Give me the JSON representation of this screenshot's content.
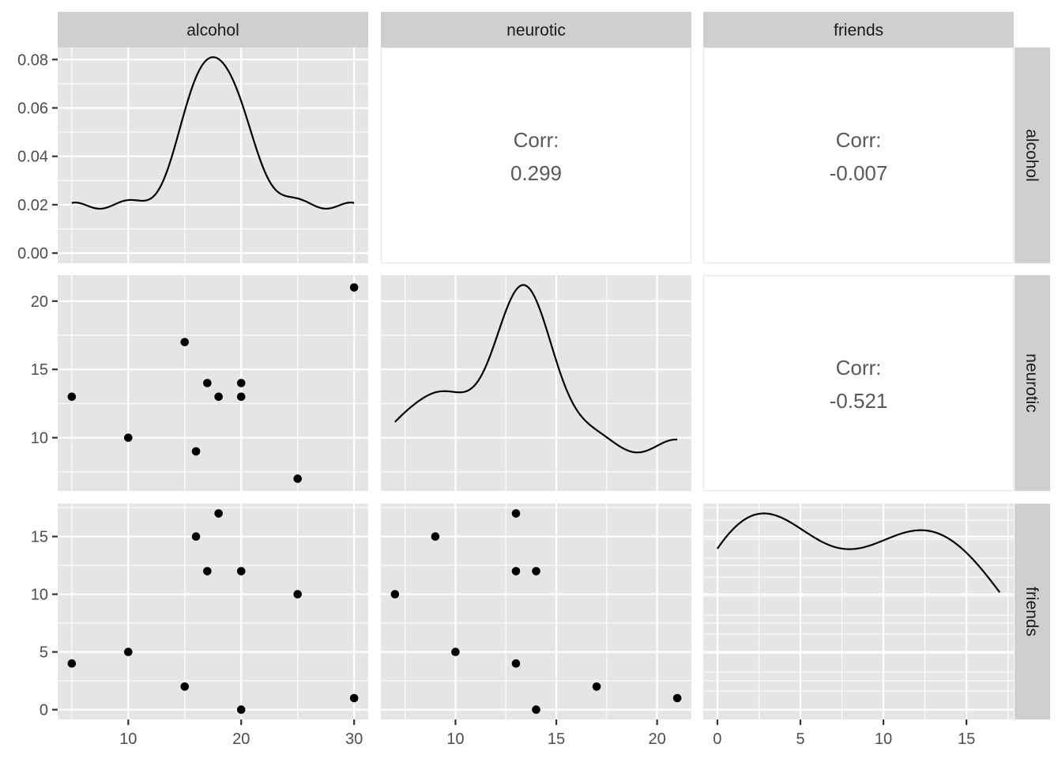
{
  "chart_data": {
    "type": "scatter",
    "title": "",
    "variables": [
      "alcohol",
      "neurotic",
      "friends"
    ],
    "observations": {
      "alcohol": [
        5,
        10,
        15,
        16,
        17,
        18,
        20,
        20,
        25,
        30
      ],
      "neurotic": [
        13,
        10,
        17,
        9,
        14,
        13,
        13,
        14,
        7,
        21
      ],
      "friends": [
        4,
        5,
        2,
        15,
        12,
        17,
        12,
        0,
        10,
        1
      ]
    },
    "x_ranges": {
      "alcohol": [
        3.75,
        31.25
      ],
      "neurotic": [
        6.3,
        21.7
      ],
      "friends": [
        -0.85,
        17.85
      ]
    },
    "y_ranges": {
      "neurotic": [
        6.1,
        21.9
      ],
      "friends": [
        -0.85,
        17.85
      ]
    },
    "density_ylim_alcohol": [
      -0.0042,
      0.085
    ],
    "x_ticks": {
      "alcohol": [
        "10",
        "20",
        "30"
      ],
      "neurotic": [
        "10",
        "15",
        "20"
      ],
      "friends": [
        "0",
        "5",
        "10",
        "15"
      ]
    },
    "x_tick_values": {
      "alcohol": [
        10,
        20,
        30
      ],
      "neurotic": [
        10,
        15,
        20
      ],
      "friends": [
        0,
        5,
        10,
        15
      ]
    },
    "y_ticks": {
      "alcohol_density": [
        "0.00",
        "0.02",
        "0.04",
        "0.06",
        "0.08"
      ],
      "neurotic": [
        "10",
        "15",
        "20"
      ],
      "friends": [
        "0",
        "5",
        "10",
        "15"
      ]
    },
    "y_tick_values": {
      "alcohol_density": [
        0,
        0.02,
        0.04,
        0.06,
        0.08
      ],
      "neurotic": [
        10,
        15,
        20
      ],
      "friends": [
        0,
        5,
        10,
        15
      ]
    },
    "correlations": [
      {
        "row": "alcohol",
        "col": "neurotic",
        "label": "Corr:",
        "value": "0.299"
      },
      {
        "row": "alcohol",
        "col": "friends",
        "label": "Corr:",
        "value": "-0.007"
      },
      {
        "row": "neurotic",
        "col": "friends",
        "label": "Corr:",
        "value": "-0.521"
      }
    ],
    "strips": {
      "top": [
        "alcohol",
        "neurotic",
        "friends"
      ],
      "right": [
        "alcohol",
        "neurotic",
        "friends"
      ]
    },
    "grid": true,
    "legend": "none",
    "colors": {
      "panel_bg": "#e5e5e5",
      "grid": "#ffffff",
      "strip_bg": "#cfcfcf",
      "point": "#000000",
      "line": "#000000",
      "corr_text": "#595959"
    }
  }
}
